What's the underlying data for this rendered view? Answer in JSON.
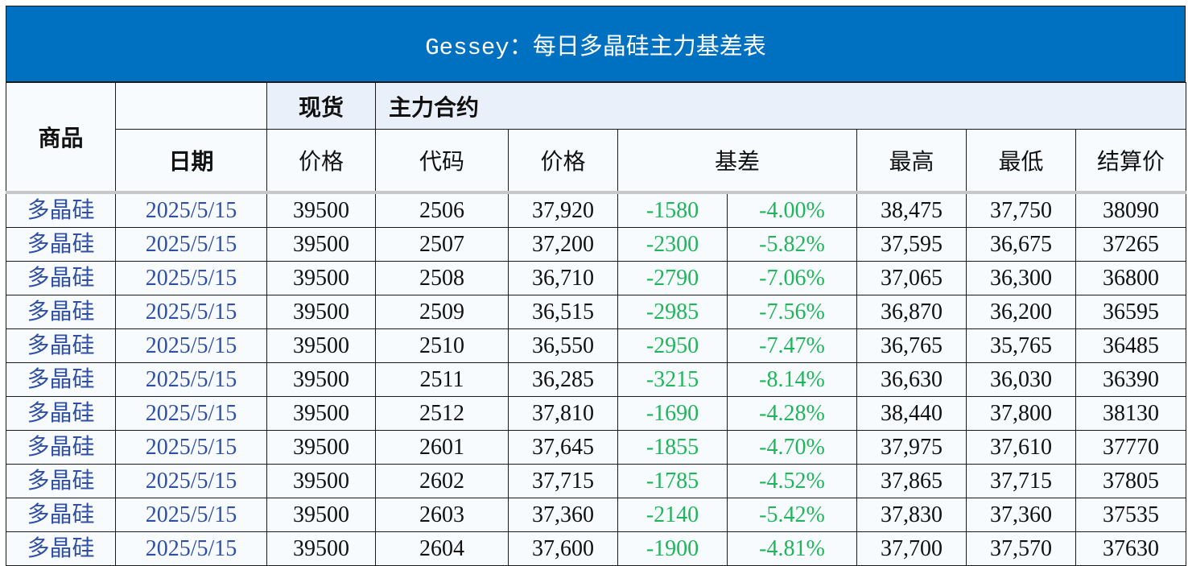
{
  "title": "Gessey：每日多晶硅主力基差表",
  "header": {
    "commodity": "商品",
    "date": "日期",
    "spot": "现货",
    "main_contract": "主力合约",
    "spot_price": "价格",
    "code": "代码",
    "price": "价格",
    "basis": "基差",
    "high": "最高",
    "low": "最低",
    "settle": "结算价"
  },
  "colors": {
    "title_bg": "#0070c0",
    "basis_text": "#1fb55a",
    "commodity_text": "#2f4fa6"
  },
  "rows": [
    {
      "commodity": "多晶硅",
      "date": "2025/5/15",
      "spot": "39500",
      "code": "2506",
      "price": "37,920",
      "basis": "-1580",
      "basis_pct": "-4.00%",
      "high": "38,475",
      "low": "37,750",
      "settle": "38090"
    },
    {
      "commodity": "多晶硅",
      "date": "2025/5/15",
      "spot": "39500",
      "code": "2507",
      "price": "37,200",
      "basis": "-2300",
      "basis_pct": "-5.82%",
      "high": "37,595",
      "low": "36,675",
      "settle": "37265"
    },
    {
      "commodity": "多晶硅",
      "date": "2025/5/15",
      "spot": "39500",
      "code": "2508",
      "price": "36,710",
      "basis": "-2790",
      "basis_pct": "-7.06%",
      "high": "37,065",
      "low": "36,300",
      "settle": "36800"
    },
    {
      "commodity": "多晶硅",
      "date": "2025/5/15",
      "spot": "39500",
      "code": "2509",
      "price": "36,515",
      "basis": "-2985",
      "basis_pct": "-7.56%",
      "high": "36,870",
      "low": "36,200",
      "settle": "36595"
    },
    {
      "commodity": "多晶硅",
      "date": "2025/5/15",
      "spot": "39500",
      "code": "2510",
      "price": "36,550",
      "basis": "-2950",
      "basis_pct": "-7.47%",
      "high": "36,765",
      "low": "35,765",
      "settle": "36485"
    },
    {
      "commodity": "多晶硅",
      "date": "2025/5/15",
      "spot": "39500",
      "code": "2511",
      "price": "36,285",
      "basis": "-3215",
      "basis_pct": "-8.14%",
      "high": "36,630",
      "low": "36,030",
      "settle": "36390"
    },
    {
      "commodity": "多晶硅",
      "date": "2025/5/15",
      "spot": "39500",
      "code": "2512",
      "price": "37,810",
      "basis": "-1690",
      "basis_pct": "-4.28%",
      "high": "38,440",
      "low": "37,800",
      "settle": "38130"
    },
    {
      "commodity": "多晶硅",
      "date": "2025/5/15",
      "spot": "39500",
      "code": "2601",
      "price": "37,645",
      "basis": "-1855",
      "basis_pct": "-4.70%",
      "high": "37,975",
      "low": "37,610",
      "settle": "37770"
    },
    {
      "commodity": "多晶硅",
      "date": "2025/5/15",
      "spot": "39500",
      "code": "2602",
      "price": "37,715",
      "basis": "-1785",
      "basis_pct": "-4.52%",
      "high": "37,865",
      "low": "37,715",
      "settle": "37805"
    },
    {
      "commodity": "多晶硅",
      "date": "2025/5/15",
      "spot": "39500",
      "code": "2603",
      "price": "37,360",
      "basis": "-2140",
      "basis_pct": "-5.42%",
      "high": "37,830",
      "low": "37,360",
      "settle": "37535"
    },
    {
      "commodity": "多晶硅",
      "date": "2025/5/15",
      "spot": "39500",
      "code": "2604",
      "price": "37,600",
      "basis": "-1900",
      "basis_pct": "-4.81%",
      "high": "37,700",
      "low": "37,570",
      "settle": "37630"
    }
  ]
}
